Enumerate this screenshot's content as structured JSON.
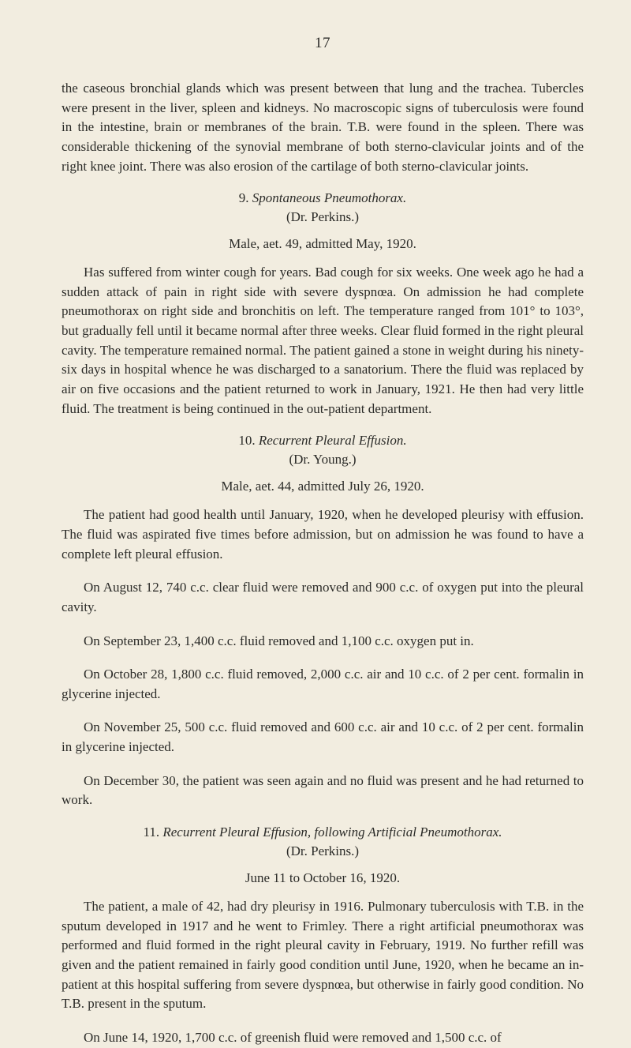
{
  "page_number": "17",
  "intro_para": "the caseous bronchial glands which was present between that lung and the trachea. Tubercles were present in the liver, spleen and kidneys. No macroscopic signs of tuberculosis were found in the intestine, brain or membranes of the brain. T.B. were found in the spleen. There was considerable thickening of the synovial membrane of both sterno-clavicular joints and of the right knee joint. There was also erosion of the cartilage of both sterno-clavicular joints.",
  "section9": {
    "number": "9.",
    "title": "Spontaneous Pneumothorax.",
    "attribution": "(Dr. Perkins.)",
    "subhead": "Male, aet. 49, admitted May, 1920.",
    "para": "Has suffered from winter cough for years. Bad cough for six weeks. One week ago he had a sudden attack of pain in right side with severe dyspnœa. On admission he had complete pneumothorax on right side and bronchitis on left. The temperature ranged from 101° to 103°, but gradually fell until it became normal after three weeks. Clear fluid formed in the right pleural cavity. The temperature remained normal. The patient gained a stone in weight during his ninety-six days in hospital whence he was discharged to a sanatorium. There the fluid was replaced by air on five occasions and the patient returned to work in January, 1921. He then had very little fluid. The treatment is being continued in the out-patient department."
  },
  "section10": {
    "number": "10.",
    "title": "Recurrent Pleural Effusion.",
    "attribution": "(Dr. Young.)",
    "subhead": "Male, aet. 44, admitted July 26, 1920.",
    "para1": "The patient had good health until January, 1920, when he developed pleurisy with effusion. The fluid was aspirated five times before admission, but on admission he was found to have a complete left pleural effusion.",
    "para2": "On August 12, 740 c.c. clear fluid were removed and 900 c.c. of oxygen put into the pleural cavity.",
    "para3": "On September 23, 1,400 c.c. fluid removed and 1,100 c.c. oxygen put in.",
    "para4": "On October 28, 1,800 c.c. fluid removed, 2,000 c.c. air and 10 c.c. of 2 per cent. formalin in glycerine injected.",
    "para5": "On November 25, 500 c.c. fluid removed and 600 c.c. air and 10 c.c. of 2 per cent. formalin in glycerine injected.",
    "para6": "On December 30, the patient was seen again and no fluid was present and he had returned to work."
  },
  "section11": {
    "number": "11.",
    "title": "Recurrent Pleural Effusion, following Artificial Pneumothorax.",
    "attribution": "(Dr. Perkins.)",
    "date_line": "June 11 to October 16, 1920.",
    "para1": "The patient, a male of 42, had dry pleurisy in 1916. Pulmonary tuberculosis with T.B. in the sputum developed in 1917 and he went to Frimley. There a right artificial pneumothorax was performed and fluid formed in the right pleural cavity in February, 1919. No further refill was given and the patient remained in fairly good condition until June, 1920, when he became an in-patient at this hospital suffering from severe dyspnœa, but otherwise in fairly good condition. No T.B. present in the sputum.",
    "para2": "On June 14, 1920, 1,700 c.c. of greenish fluid were removed and 1,500 c.c. of"
  }
}
